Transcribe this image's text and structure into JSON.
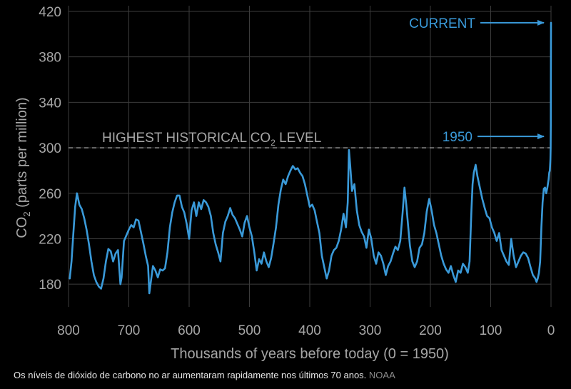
{
  "chart_data": {
    "type": "line",
    "xlabel": "Thousands of years before today (0 = 1950)",
    "ylabel": "CO2 (parts per million)",
    "ylabel_main": "CO",
    "ylabel_sub": "2",
    "ylabel_rest": " (parts per million)",
    "xlim": [
      800,
      0
    ],
    "ylim": [
      160,
      425
    ],
    "x_ticks": [
      800,
      700,
      600,
      500,
      400,
      300,
      200,
      100,
      0
    ],
    "y_ticks": [
      180,
      220,
      260,
      300,
      340,
      380,
      420
    ],
    "grid": true,
    "colors": {
      "line": "#3a9ad9",
      "background": "#000000",
      "grid": "#3c3c3c",
      "text": "#a6a6a6",
      "reference": "#9a9a9a"
    },
    "reference_line": {
      "y": 300,
      "label_main": "HIGHEST HISTORICAL CO",
      "label_sub": "2",
      "label_rest": " LEVEL"
    },
    "annotations": [
      {
        "text": "CURRENT",
        "x": 0,
        "y": 410
      },
      {
        "text": "1950",
        "x": 0,
        "y": 310
      }
    ],
    "series": [
      {
        "values": [
          [
            798,
            185
          ],
          [
            795,
            200
          ],
          [
            792,
            225
          ],
          [
            789,
            248
          ],
          [
            786,
            260
          ],
          [
            782,
            250
          ],
          [
            778,
            246
          ],
          [
            774,
            238
          ],
          [
            770,
            228
          ],
          [
            766,
            215
          ],
          [
            762,
            200
          ],
          [
            758,
            188
          ],
          [
            754,
            182
          ],
          [
            750,
            178
          ],
          [
            746,
            176
          ],
          [
            742,
            185
          ],
          [
            738,
            200
          ],
          [
            734,
            211
          ],
          [
            730,
            209
          ],
          [
            726,
            200
          ],
          [
            722,
            207
          ],
          [
            718,
            210
          ],
          [
            714,
            180
          ],
          [
            712,
            186
          ],
          [
            708,
            218
          ],
          [
            704,
            223
          ],
          [
            700,
            228
          ],
          [
            696,
            232
          ],
          [
            692,
            230
          ],
          [
            688,
            237
          ],
          [
            684,
            236
          ],
          [
            680,
            226
          ],
          [
            676,
            216
          ],
          [
            672,
            205
          ],
          [
            668,
            196
          ],
          [
            666,
            172
          ],
          [
            664,
            180
          ],
          [
            660,
            196
          ],
          [
            656,
            192
          ],
          [
            652,
            186
          ],
          [
            648,
            193
          ],
          [
            644,
            192
          ],
          [
            640,
            194
          ],
          [
            636,
            208
          ],
          [
            632,
            230
          ],
          [
            628,
            243
          ],
          [
            624,
            252
          ],
          [
            620,
            258
          ],
          [
            616,
            258
          ],
          [
            612,
            248
          ],
          [
            608,
            243
          ],
          [
            604,
            233
          ],
          [
            600,
            220
          ],
          [
            596,
            245
          ],
          [
            592,
            252
          ],
          [
            588,
            240
          ],
          [
            584,
            252
          ],
          [
            580,
            246
          ],
          [
            576,
            254
          ],
          [
            572,
            252
          ],
          [
            568,
            248
          ],
          [
            564,
            240
          ],
          [
            560,
            225
          ],
          [
            556,
            215
          ],
          [
            552,
            208
          ],
          [
            548,
            200
          ],
          [
            544,
            225
          ],
          [
            540,
            235
          ],
          [
            536,
            240
          ],
          [
            532,
            247
          ],
          [
            528,
            241
          ],
          [
            524,
            238
          ],
          [
            520,
            233
          ],
          [
            516,
            228
          ],
          [
            512,
            222
          ],
          [
            508,
            234
          ],
          [
            504,
            240
          ],
          [
            500,
            230
          ],
          [
            496,
            222
          ],
          [
            492,
            208
          ],
          [
            488,
            192
          ],
          [
            484,
            202
          ],
          [
            480,
            198
          ],
          [
            476,
            208
          ],
          [
            472,
            200
          ],
          [
            468,
            195
          ],
          [
            464,
            203
          ],
          [
            460,
            216
          ],
          [
            456,
            230
          ],
          [
            452,
            250
          ],
          [
            448,
            263
          ],
          [
            444,
            272
          ],
          [
            440,
            268
          ],
          [
            436,
            275
          ],
          [
            432,
            280
          ],
          [
            428,
            284
          ],
          [
            424,
            281
          ],
          [
            420,
            282
          ],
          [
            416,
            278
          ],
          [
            412,
            275
          ],
          [
            408,
            268
          ],
          [
            404,
            258
          ],
          [
            400,
            248
          ],
          [
            396,
            250
          ],
          [
            392,
            245
          ],
          [
            388,
            235
          ],
          [
            384,
            225
          ],
          [
            380,
            205
          ],
          [
            376,
            195
          ],
          [
            372,
            185
          ],
          [
            368,
            192
          ],
          [
            364,
            205
          ],
          [
            360,
            210
          ],
          [
            356,
            212
          ],
          [
            352,
            218
          ],
          [
            348,
            228
          ],
          [
            344,
            242
          ],
          [
            340,
            230
          ],
          [
            337,
            252
          ],
          [
            335,
            298
          ],
          [
            333,
            285
          ],
          [
            330,
            262
          ],
          [
            326,
            268
          ],
          [
            322,
            245
          ],
          [
            318,
            232
          ],
          [
            314,
            226
          ],
          [
            310,
            222
          ],
          [
            306,
            212
          ],
          [
            302,
            228
          ],
          [
            298,
            220
          ],
          [
            294,
            205
          ],
          [
            290,
            198
          ],
          [
            286,
            208
          ],
          [
            282,
            205
          ],
          [
            278,
            198
          ],
          [
            274,
            188
          ],
          [
            270,
            196
          ],
          [
            266,
            200
          ],
          [
            262,
            207
          ],
          [
            258,
            213
          ],
          [
            254,
            210
          ],
          [
            250,
            218
          ],
          [
            246,
            243
          ],
          [
            243,
            265
          ],
          [
            240,
            250
          ],
          [
            237,
            232
          ],
          [
            234,
            214
          ],
          [
            230,
            200
          ],
          [
            226,
            195
          ],
          [
            222,
            200
          ],
          [
            218,
            212
          ],
          [
            214,
            215
          ],
          [
            210,
            225
          ],
          [
            206,
            244
          ],
          [
            202,
            255
          ],
          [
            198,
            245
          ],
          [
            194,
            232
          ],
          [
            190,
            225
          ],
          [
            186,
            215
          ],
          [
            182,
            205
          ],
          [
            178,
            198
          ],
          [
            174,
            193
          ],
          [
            170,
            190
          ],
          [
            166,
            196
          ],
          [
            162,
            188
          ],
          [
            158,
            182
          ],
          [
            154,
            192
          ],
          [
            150,
            190
          ],
          [
            146,
            198
          ],
          [
            142,
            195
          ],
          [
            138,
            190
          ],
          [
            135,
            200
          ],
          [
            132,
            245
          ],
          [
            130,
            268
          ],
          [
            128,
            278
          ],
          [
            125,
            285
          ],
          [
            122,
            275
          ],
          [
            118,
            265
          ],
          [
            114,
            255
          ],
          [
            110,
            247
          ],
          [
            106,
            240
          ],
          [
            102,
            238
          ],
          [
            98,
            230
          ],
          [
            94,
            225
          ],
          [
            90,
            218
          ],
          [
            86,
            225
          ],
          [
            82,
            210
          ],
          [
            78,
            205
          ],
          [
            74,
            200
          ],
          [
            70,
            197
          ],
          [
            66,
            220
          ],
          [
            62,
            205
          ],
          [
            58,
            195
          ],
          [
            54,
            200
          ],
          [
            50,
            205
          ],
          [
            46,
            208
          ],
          [
            42,
            207
          ],
          [
            38,
            203
          ],
          [
            34,
            195
          ],
          [
            30,
            188
          ],
          [
            26,
            185
          ],
          [
            24,
            182
          ],
          [
            22,
            185
          ],
          [
            20,
            190
          ],
          [
            18,
            200
          ],
          [
            16,
            230
          ],
          [
            14,
            252
          ],
          [
            12,
            264
          ],
          [
            10,
            265
          ],
          [
            8,
            260
          ],
          [
            6,
            265
          ],
          [
            4,
            272
          ],
          [
            3,
            278
          ],
          [
            2,
            280
          ],
          [
            1.5,
            284
          ],
          [
            1,
            290
          ],
          [
            0.6,
            300
          ],
          [
            0.4,
            320
          ],
          [
            0.2,
            360
          ],
          [
            0,
            410
          ]
        ]
      }
    ]
  },
  "caption": {
    "text": "Os níveis de dióxido de carbono no ar aumentaram rapidamente nos últimos 70 anos.",
    "source": "NOAA"
  }
}
